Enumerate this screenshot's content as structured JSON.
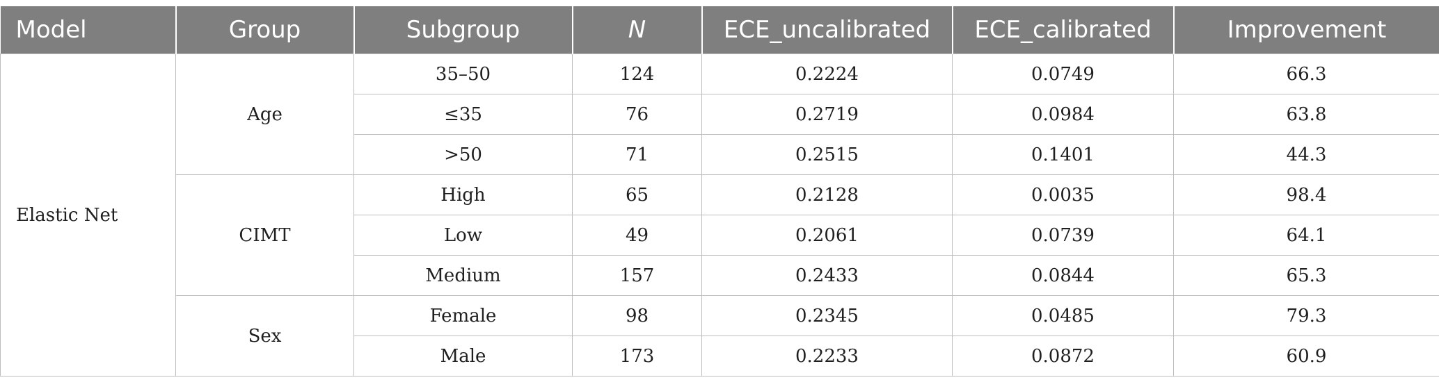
{
  "table": {
    "headers": [
      "Model",
      "Group",
      "Subgroup",
      "N",
      "ECE_uncalibrated",
      "ECE_calibrated",
      "Improvement"
    ],
    "model": "Elastic Net",
    "groups": [
      {
        "name": "Age",
        "rows": [
          {
            "subgroup": "35–50",
            "n": "124",
            "ece_uncal": "0.2224",
            "ece_cal": "0.0749",
            "improvement": "66.3"
          },
          {
            "subgroup": "≤35",
            "n": "76",
            "ece_uncal": "0.2719",
            "ece_cal": "0.0984",
            "improvement": "63.8"
          },
          {
            "subgroup": ">50",
            "n": "71",
            "ece_uncal": "0.2515",
            "ece_cal": "0.1401",
            "improvement": "44.3"
          }
        ]
      },
      {
        "name": "CIMT",
        "rows": [
          {
            "subgroup": "High",
            "n": "65",
            "ece_uncal": "0.2128",
            "ece_cal": "0.0035",
            "improvement": "98.4"
          },
          {
            "subgroup": "Low",
            "n": "49",
            "ece_uncal": "0.2061",
            "ece_cal": "0.0739",
            "improvement": "64.1"
          },
          {
            "subgroup": "Medium",
            "n": "157",
            "ece_uncal": "0.2433",
            "ece_cal": "0.0844",
            "improvement": "65.3"
          }
        ]
      },
      {
        "name": "Sex",
        "rows": [
          {
            "subgroup": "Female",
            "n": "98",
            "ece_uncal": "0.2345",
            "ece_cal": "0.0485",
            "improvement": "79.3"
          },
          {
            "subgroup": "Male",
            "n": "173",
            "ece_uncal": "0.2233",
            "ece_cal": "0.0872",
            "improvement": "60.9"
          }
        ]
      }
    ]
  }
}
